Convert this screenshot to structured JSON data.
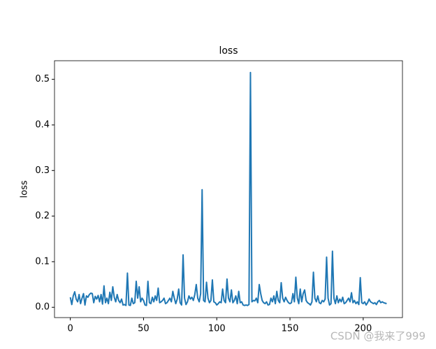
{
  "chart_data": {
    "type": "line",
    "title": "loss",
    "ylabel": "loss",
    "color": "#1f77b4",
    "values": [
      0.022,
      0.006,
      0.025,
      0.034,
      0.018,
      0.012,
      0.028,
      0.008,
      0.02,
      0.03,
      0.005,
      0.025,
      0.022,
      0.028,
      0.031,
      0.03,
      0.01,
      0.024,
      0.018,
      0.026,
      0.012,
      0.028,
      0.007,
      0.047,
      0.01,
      0.02,
      0.008,
      0.033,
      0.015,
      0.045,
      0.022,
      0.012,
      0.028,
      0.015,
      0.01,
      0.018,
      0.005,
      0.006,
      0.004,
      0.075,
      0.005,
      0.004,
      0.02,
      0.008,
      0.01,
      0.057,
      0.02,
      0.045,
      0.012,
      0.02,
      0.015,
      0.005,
      0.004,
      0.057,
      0.01,
      0.008,
      0.022,
      0.012,
      0.025,
      0.015,
      0.042,
      0.01,
      0.012,
      0.015,
      0.02,
      0.008,
      0.01,
      0.015,
      0.02,
      0.012,
      0.035,
      0.02,
      0.008,
      0.018,
      0.04,
      0.01,
      0.005,
      0.115,
      0.02,
      0.006,
      0.012,
      0.025,
      0.018,
      0.022,
      0.015,
      0.028,
      0.05,
      0.02,
      0.012,
      0.03,
      0.258,
      0.015,
      0.012,
      0.055,
      0.02,
      0.01,
      0.015,
      0.06,
      0.012,
      0.01,
      0.005,
      0.008,
      0.012,
      0.01,
      0.04,
      0.015,
      0.01,
      0.062,
      0.02,
      0.012,
      0.038,
      0.01,
      0.015,
      0.025,
      0.008,
      0.035,
      0.01,
      0.012,
      0.005,
      0.004,
      0.005,
      0.004,
      0.006,
      0.515,
      0.012,
      0.015,
      0.014,
      0.02,
      0.01,
      0.05,
      0.03,
      0.015,
      0.01,
      0.008,
      0.012,
      0.005,
      0.006,
      0.02,
      0.012,
      0.025,
      0.008,
      0.035,
      0.015,
      0.01,
      0.054,
      0.02,
      0.012,
      0.022,
      0.015,
      0.01,
      0.008,
      0.01,
      0.03,
      0.012,
      0.066,
      0.02,
      0.008,
      0.04,
      0.012,
      0.03,
      0.038,
      0.015,
      0.01,
      0.008,
      0.005,
      0.012,
      0.077,
      0.02,
      0.012,
      0.025,
      0.01,
      0.008,
      0.015,
      0.012,
      0.018,
      0.11,
      0.02,
      0.005,
      0.008,
      0.123,
      0.02,
      0.008,
      0.025,
      0.01,
      0.018,
      0.012,
      0.022,
      0.008,
      0.01,
      0.015,
      0.02,
      0.012,
      0.032,
      0.01,
      0.015,
      0.008,
      0.012,
      0.006,
      0.065,
      0.01,
      0.008,
      0.012,
      0.005,
      0.01,
      0.018,
      0.012,
      0.01,
      0.008,
      0.01,
      0.006,
      0.012,
      0.015,
      0.01,
      0.012,
      0.01,
      0.009,
      0.008
    ],
    "xlim": [
      -10.8,
      226.8
    ],
    "xticks": [
      0,
      50,
      100,
      150,
      200
    ],
    "ylim": [
      -0.0226,
      0.5408
    ],
    "yticks": [
      {
        "value": 0,
        "label": "0.0"
      },
      0.1,
      0.2,
      0.3,
      0.4,
      0.5
    ],
    "watermark": "CSDN @我来了999"
  }
}
